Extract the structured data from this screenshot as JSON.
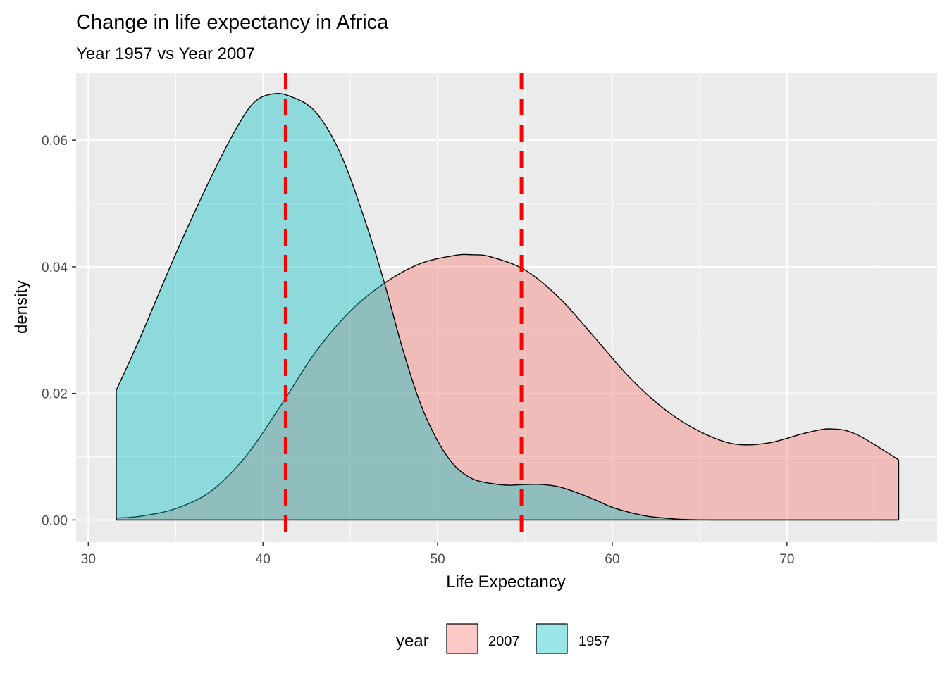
{
  "chart_data": {
    "type": "area",
    "title": "Change in life expectancy in Africa",
    "subtitle": "Year 1957 vs Year 2007",
    "xlabel": "Life Expectancy",
    "ylabel": "density",
    "xlim": [
      29.3,
      78.6
    ],
    "ylim": [
      -0.0034,
      0.0707
    ],
    "x_ticks": [
      30,
      40,
      50,
      60,
      70
    ],
    "y_ticks": [
      0.0,
      0.02,
      0.04,
      0.06
    ],
    "x_tick_labels": [
      "30",
      "40",
      "50",
      "60",
      "70"
    ],
    "y_tick_labels": [
      "0.00",
      "0.02",
      "0.04",
      "0.06"
    ],
    "grid": true,
    "legend": {
      "title": "year",
      "position": "bottom",
      "entries": [
        "2007",
        "1957"
      ]
    },
    "series": [
      {
        "name": "2007",
        "color": "#F8766D",
        "points": [
          [
            31.6,
            0.0003
          ],
          [
            33,
            0.0006
          ],
          [
            35,
            0.0018
          ],
          [
            37,
            0.0045
          ],
          [
            39,
            0.01
          ],
          [
            41,
            0.018
          ],
          [
            43,
            0.0265
          ],
          [
            45,
            0.033
          ],
          [
            47,
            0.0375
          ],
          [
            49,
            0.0405
          ],
          [
            51,
            0.0418
          ],
          [
            52,
            0.0419
          ],
          [
            53,
            0.0416
          ],
          [
            55,
            0.0395
          ],
          [
            57,
            0.035
          ],
          [
            59,
            0.0288
          ],
          [
            61,
            0.0225
          ],
          [
            63,
            0.0175
          ],
          [
            65,
            0.014
          ],
          [
            67,
            0.012
          ],
          [
            69,
            0.0122
          ],
          [
            71,
            0.0137
          ],
          [
            72.5,
            0.0144
          ],
          [
            74,
            0.0135
          ],
          [
            76.4,
            0.0095
          ]
        ]
      },
      {
        "name": "1957",
        "color": "#00BFC4",
        "points": [
          [
            31.6,
            0.0205
          ],
          [
            33,
            0.029
          ],
          [
            35,
            0.042
          ],
          [
            37,
            0.054
          ],
          [
            38.5,
            0.062
          ],
          [
            39.5,
            0.066
          ],
          [
            40.5,
            0.0673
          ],
          [
            41.5,
            0.067
          ],
          [
            43,
            0.0645
          ],
          [
            44.5,
            0.0575
          ],
          [
            46,
            0.046
          ],
          [
            47,
            0.037
          ],
          [
            48,
            0.027
          ],
          [
            49,
            0.0185
          ],
          [
            50,
            0.0125
          ],
          [
            51,
            0.0085
          ],
          [
            52,
            0.0065
          ],
          [
            53,
            0.0058
          ],
          [
            54,
            0.0055
          ],
          [
            55,
            0.0056
          ],
          [
            56,
            0.0056
          ],
          [
            57,
            0.0052
          ],
          [
            58,
            0.0043
          ],
          [
            59,
            0.0032
          ],
          [
            60,
            0.002
          ],
          [
            61,
            0.0012
          ],
          [
            62,
            0.0006
          ],
          [
            63,
            0.0003
          ],
          [
            64,
            0.0001
          ],
          [
            66,
            0.0
          ],
          [
            70,
            0.0
          ],
          [
            76.4,
            0.0
          ]
        ]
      }
    ],
    "reference_lines": [
      {
        "x": 41.3,
        "color": "#FF0000",
        "style": "dashed"
      },
      {
        "x": 54.8,
        "color": "#FF0000",
        "style": "dashed"
      }
    ]
  }
}
